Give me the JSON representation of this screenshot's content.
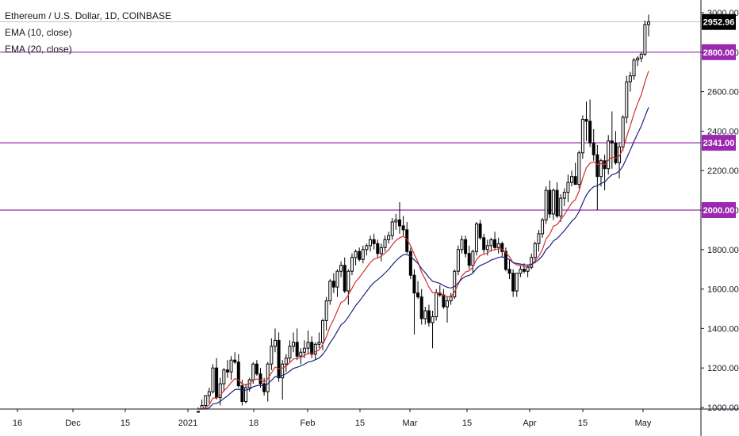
{
  "legend": {
    "symbol": "Ethereum / U.S. Dollar, 1D, COINBASE",
    "ema1": "EMA (10, close)",
    "ema2": "EMA (20, close)"
  },
  "colors": {
    "up_candle": "#ffffff",
    "down_candle": "#000000",
    "candle_outline": "#000000",
    "ema10": "#d32f2f",
    "ema20": "#1a237e",
    "level_line": "#9c27b0",
    "level_tag": "#9c27b0",
    "last_price_tag": "#000000"
  },
  "chart_data": {
    "type": "candlestick",
    "title": "Ethereum / U.S. Dollar, 1D, COINBASE",
    "ylim": [
      990,
      3050
    ],
    "y_ticks": [
      "1000.00",
      "1200.00",
      "1400.00",
      "1600.00",
      "1800.00",
      "2000.00",
      "2200.00",
      "2400.00",
      "2600.00",
      "2800.00",
      "3000.00"
    ],
    "x_ticks": [
      "16",
      "Dec",
      "15",
      "2021",
      "18",
      "Feb",
      "15",
      "Mar",
      "15",
      "Apr",
      "15",
      "May"
    ],
    "last_price": "2952.96",
    "levels": [
      {
        "value": 2800,
        "label": "2800.00"
      },
      {
        "value": 2341,
        "label": "2341.00"
      },
      {
        "value": 2000,
        "label": "2000.00"
      }
    ],
    "candles": [
      [
        960,
        1000,
        940,
        980
      ],
      [
        980,
        1040,
        960,
        1010
      ],
      [
        1010,
        1060,
        960,
        1060
      ],
      [
        1060,
        1100,
        1020,
        1080
      ],
      [
        1080,
        1220,
        1070,
        1200
      ],
      [
        1200,
        1250,
        1040,
        1050
      ],
      [
        1050,
        1150,
        1010,
        1120
      ],
      [
        1120,
        1200,
        1080,
        1190
      ],
      [
        1190,
        1240,
        1150,
        1180
      ],
      [
        1180,
        1260,
        1140,
        1240
      ],
      [
        1240,
        1280,
        1220,
        1230
      ],
      [
        1230,
        1270,
        1100,
        1110
      ],
      [
        1110,
        1140,
        1010,
        1030
      ],
      [
        1030,
        1120,
        1020,
        1100
      ],
      [
        1100,
        1150,
        1080,
        1140
      ],
      [
        1140,
        1230,
        1120,
        1220
      ],
      [
        1220,
        1240,
        1160,
        1170
      ],
      [
        1170,
        1200,
        1100,
        1120
      ],
      [
        1120,
        1150,
        1060,
        1080
      ],
      [
        1080,
        1230,
        1030,
        1220
      ],
      [
        1220,
        1350,
        1190,
        1310
      ],
      [
        1310,
        1400,
        1280,
        1340
      ],
      [
        1340,
        1380,
        1130,
        1150
      ],
      [
        1150,
        1240,
        1040,
        1220
      ],
      [
        1220,
        1270,
        1180,
        1250
      ],
      [
        1250,
        1340,
        1230,
        1310
      ],
      [
        1310,
        1380,
        1280,
        1330
      ],
      [
        1330,
        1400,
        1240,
        1260
      ],
      [
        1260,
        1300,
        1220,
        1280
      ],
      [
        1280,
        1340,
        1250,
        1300
      ],
      [
        1300,
        1390,
        1270,
        1330
      ],
      [
        1330,
        1360,
        1250,
        1270
      ],
      [
        1270,
        1330,
        1240,
        1320
      ],
      [
        1320,
        1380,
        1300,
        1330
      ],
      [
        1330,
        1450,
        1290,
        1440
      ],
      [
        1440,
        1560,
        1390,
        1540
      ],
      [
        1540,
        1650,
        1520,
        1640
      ],
      [
        1640,
        1680,
        1580,
        1610
      ],
      [
        1610,
        1700,
        1560,
        1690
      ],
      [
        1690,
        1740,
        1660,
        1720
      ],
      [
        1720,
        1760,
        1580,
        1590
      ],
      [
        1590,
        1700,
        1520,
        1690
      ],
      [
        1690,
        1780,
        1670,
        1760
      ],
      [
        1760,
        1800,
        1720,
        1790
      ],
      [
        1790,
        1810,
        1740,
        1750
      ],
      [
        1750,
        1820,
        1730,
        1800
      ],
      [
        1800,
        1830,
        1770,
        1820
      ],
      [
        1820,
        1870,
        1790,
        1850
      ],
      [
        1850,
        1880,
        1800,
        1830
      ],
      [
        1830,
        1850,
        1760,
        1780
      ],
      [
        1780,
        1830,
        1740,
        1810
      ],
      [
        1810,
        1870,
        1790,
        1850
      ],
      [
        1850,
        1890,
        1830,
        1870
      ],
      [
        1870,
        1960,
        1850,
        1940
      ],
      [
        1940,
        1980,
        1900,
        1950
      ],
      [
        1950,
        2040,
        1880,
        1920
      ],
      [
        1920,
        1970,
        1870,
        1900
      ],
      [
        1900,
        1940,
        1780,
        1790
      ],
      [
        1790,
        1810,
        1650,
        1670
      ],
      [
        1670,
        1700,
        1370,
        1580
      ],
      [
        1580,
        1640,
        1550,
        1560
      ],
      [
        1560,
        1600,
        1420,
        1450
      ],
      [
        1450,
        1510,
        1420,
        1490
      ],
      [
        1490,
        1520,
        1410,
        1430
      ],
      [
        1430,
        1490,
        1300,
        1460
      ],
      [
        1460,
        1600,
        1440,
        1580
      ],
      [
        1580,
        1620,
        1560,
        1570
      ],
      [
        1570,
        1600,
        1500,
        1510
      ],
      [
        1510,
        1560,
        1430,
        1540
      ],
      [
        1540,
        1580,
        1520,
        1560
      ],
      [
        1560,
        1700,
        1550,
        1690
      ],
      [
        1690,
        1820,
        1670,
        1800
      ],
      [
        1800,
        1870,
        1780,
        1850
      ],
      [
        1850,
        1870,
        1760,
        1780
      ],
      [
        1780,
        1820,
        1700,
        1720
      ],
      [
        1720,
        1800,
        1680,
        1790
      ],
      [
        1790,
        1940,
        1770,
        1930
      ],
      [
        1930,
        1950,
        1850,
        1860
      ],
      [
        1860,
        1880,
        1780,
        1800
      ],
      [
        1800,
        1850,
        1770,
        1820
      ],
      [
        1820,
        1860,
        1790,
        1850
      ],
      [
        1850,
        1890,
        1800,
        1810
      ],
      [
        1810,
        1860,
        1780,
        1830
      ],
      [
        1830,
        1840,
        1760,
        1790
      ],
      [
        1790,
        1810,
        1690,
        1700
      ],
      [
        1700,
        1750,
        1650,
        1680
      ],
      [
        1680,
        1700,
        1560,
        1590
      ],
      [
        1590,
        1680,
        1560,
        1680
      ],
      [
        1680,
        1720,
        1660,
        1700
      ],
      [
        1700,
        1730,
        1680,
        1690
      ],
      [
        1690,
        1720,
        1660,
        1710
      ],
      [
        1710,
        1780,
        1700,
        1760
      ],
      [
        1760,
        1840,
        1730,
        1830
      ],
      [
        1830,
        1900,
        1790,
        1880
      ],
      [
        1880,
        1960,
        1860,
        1950
      ],
      [
        1950,
        2120,
        1930,
        2100
      ],
      [
        2100,
        2150,
        1960,
        1980
      ],
      [
        1980,
        2110,
        1950,
        2100
      ],
      [
        2100,
        2140,
        1960,
        1970
      ],
      [
        1970,
        2080,
        1940,
        2060
      ],
      [
        2060,
        2110,
        2020,
        2090
      ],
      [
        2090,
        2180,
        2040,
        2140
      ],
      [
        2140,
        2200,
        2120,
        2170
      ],
      [
        2170,
        2240,
        2150,
        2130
      ],
      [
        2130,
        2300,
        2110,
        2290
      ],
      [
        2290,
        2480,
        2260,
        2460
      ],
      [
        2460,
        2550,
        2350,
        2450
      ],
      [
        2450,
        2560,
        2320,
        2340
      ],
      [
        2340,
        2410,
        2250,
        2280
      ],
      [
        2280,
        2330,
        2000,
        2170
      ],
      [
        2170,
        2260,
        2120,
        2250
      ],
      [
        2250,
        2280,
        2100,
        2210
      ],
      [
        2210,
        2380,
        2180,
        2350
      ],
      [
        2350,
        2500,
        2210,
        2340
      ],
      [
        2340,
        2400,
        2230,
        2240
      ],
      [
        2240,
        2340,
        2160,
        2320
      ],
      [
        2320,
        2480,
        2300,
        2470
      ],
      [
        2470,
        2680,
        2440,
        2650
      ],
      [
        2650,
        2700,
        2600,
        2680
      ],
      [
        2680,
        2770,
        2660,
        2760
      ],
      [
        2760,
        2780,
        2730,
        2770
      ],
      [
        2770,
        2800,
        2750,
        2790
      ],
      [
        2790,
        2960,
        2780,
        2940
      ],
      [
        2940,
        2990,
        2880,
        2953
      ]
    ]
  }
}
